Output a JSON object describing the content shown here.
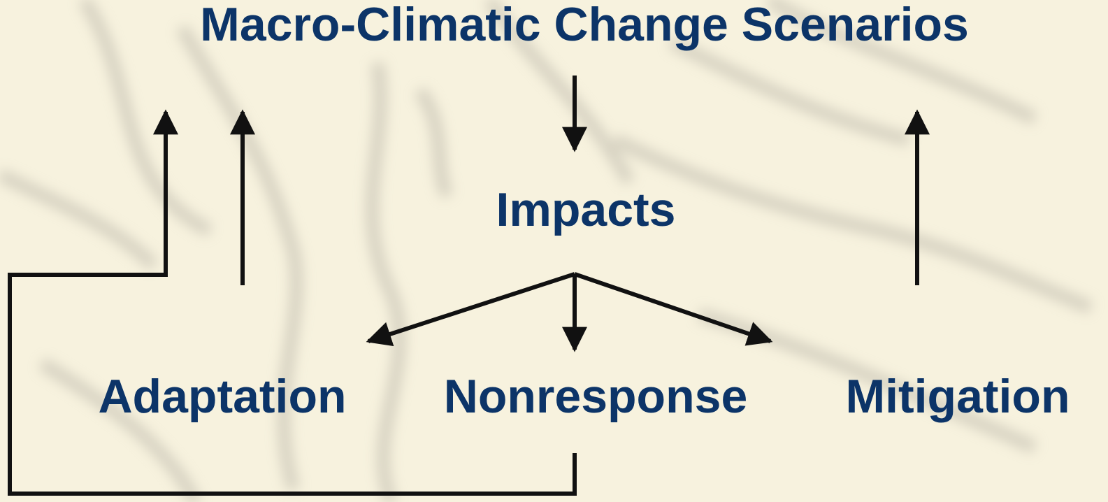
{
  "title": "Macro-Climatic Change Scenarios",
  "nodes": [
    {
      "label": "Impacts"
    },
    {
      "label": "Adaptation"
    },
    {
      "label": "Nonresponse"
    },
    {
      "label": "Mitigation"
    }
  ]
}
